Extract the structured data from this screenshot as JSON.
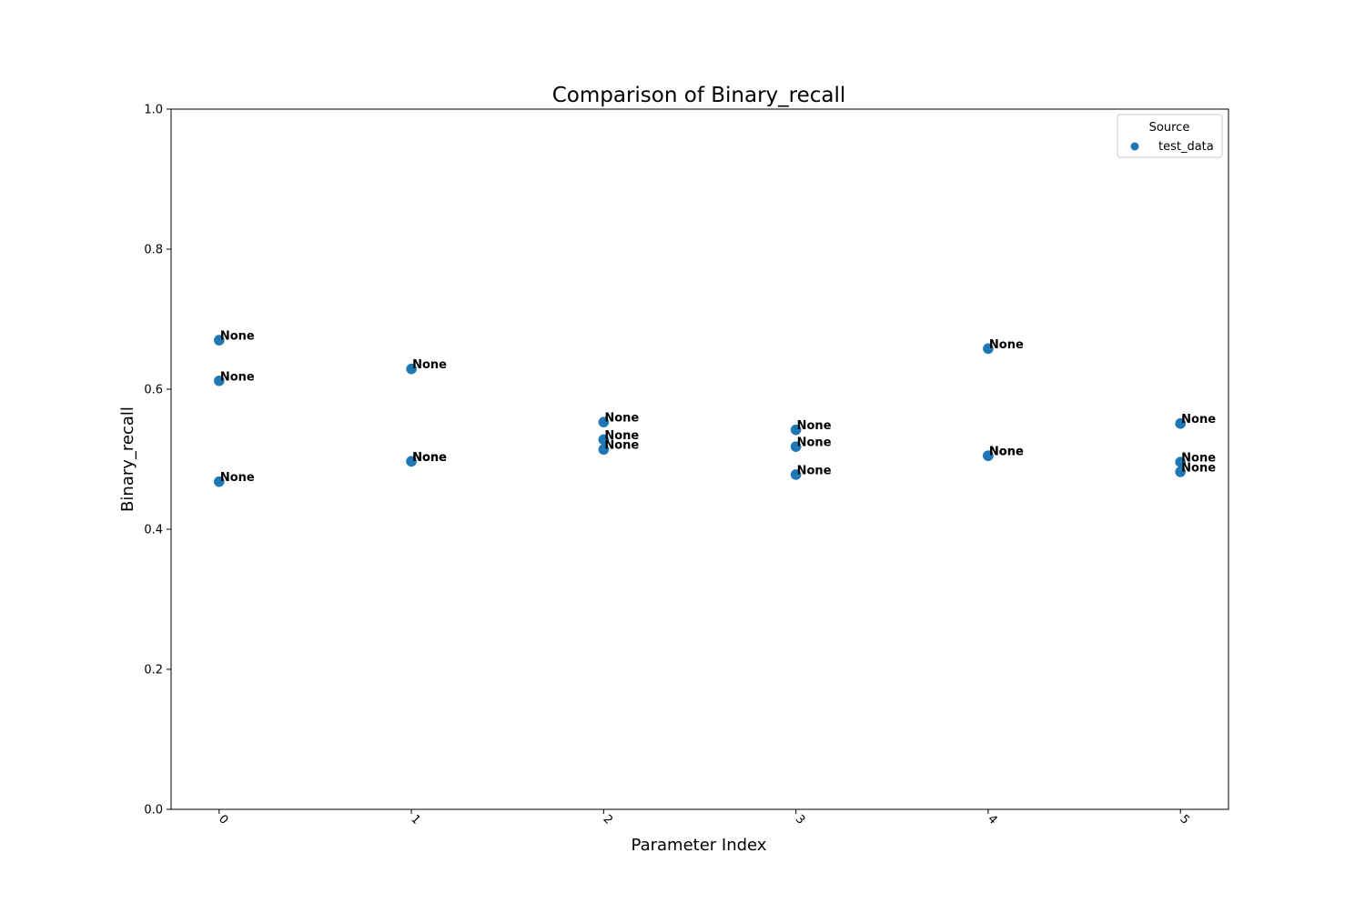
{
  "chart_data": {
    "type": "scatter",
    "title": "Comparison of Binary_recall",
    "xlabel": "Parameter Index",
    "ylabel": "Binary_recall",
    "xlim": [
      -0.25,
      5.25
    ],
    "ylim": [
      0.0,
      1.0
    ],
    "x_ticks": [
      "0",
      "1",
      "2",
      "3",
      "4",
      "5"
    ],
    "y_ticks": [
      "0.0",
      "0.2",
      "0.4",
      "0.6",
      "0.8",
      "1.0"
    ],
    "x_tick_rotation_deg": 45,
    "grid": false,
    "legend": {
      "title": "Source",
      "placement": "top-right",
      "entries": [
        "test_data"
      ]
    },
    "series": [
      {
        "name": "test_data",
        "color": "#1f77b4",
        "points": [
          {
            "x": 0,
            "y": 0.67,
            "label": "None"
          },
          {
            "x": 0,
            "y": 0.612,
            "label": "None"
          },
          {
            "x": 0,
            "y": 0.468,
            "label": "None"
          },
          {
            "x": 1,
            "y": 0.629,
            "label": "None"
          },
          {
            "x": 1,
            "y": 0.497,
            "label": "None"
          },
          {
            "x": 1,
            "y": 0.497,
            "label": "None"
          },
          {
            "x": 2,
            "y": 0.553,
            "label": "None"
          },
          {
            "x": 2,
            "y": 0.528,
            "label": "None"
          },
          {
            "x": 2,
            "y": 0.514,
            "label": "None"
          },
          {
            "x": 3,
            "y": 0.542,
            "label": "None"
          },
          {
            "x": 3,
            "y": 0.518,
            "label": "None"
          },
          {
            "x": 3,
            "y": 0.478,
            "label": "None"
          },
          {
            "x": 4,
            "y": 0.658,
            "label": "None"
          },
          {
            "x": 4,
            "y": 0.505,
            "label": "None"
          },
          {
            "x": 4,
            "y": 0.505,
            "label": "None"
          },
          {
            "x": 5,
            "y": 0.551,
            "label": "None"
          },
          {
            "x": 5,
            "y": 0.496,
            "label": "None"
          },
          {
            "x": 5,
            "y": 0.482,
            "label": "None"
          }
        ]
      }
    ]
  }
}
